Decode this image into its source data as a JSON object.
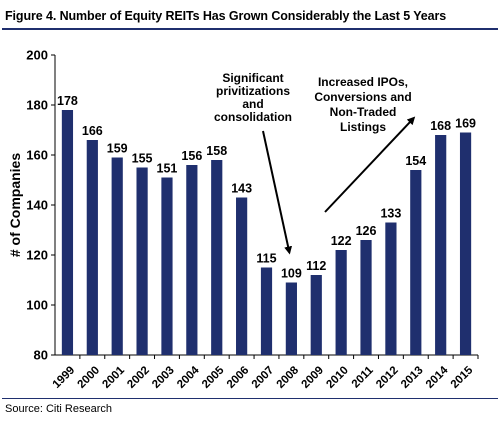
{
  "title": "Figure 4. Number of Equity REITs Has Grown Considerably the Last 5 Years",
  "source": "Source: Citi Research",
  "chart_data": {
    "type": "bar",
    "categories": [
      "1999",
      "2000",
      "2001",
      "2002",
      "2003",
      "2004",
      "2005",
      "2006",
      "2007",
      "2008",
      "2009",
      "2010",
      "2011",
      "2012",
      "2013",
      "2014",
      "2015"
    ],
    "values": [
      178,
      166,
      159,
      155,
      151,
      156,
      158,
      143,
      115,
      109,
      112,
      122,
      126,
      133,
      154,
      168,
      169
    ],
    "ylabel": "# of Companies",
    "xlabel": "",
    "ylim": [
      80,
      200
    ],
    "yticks": [
      80,
      100,
      120,
      140,
      160,
      180,
      200
    ],
    "bar_color": "#1f2f6e",
    "grid": false,
    "legend": "none",
    "annotations": [
      {
        "lines": [
          "Significant",
          "privitizations",
          "and",
          "consolidation"
        ],
        "points_to": "2008"
      },
      {
        "lines": [
          "Increased IPOs,",
          "Conversions and",
          "Non-Traded",
          "Listings"
        ],
        "points_to": "2013"
      }
    ]
  }
}
